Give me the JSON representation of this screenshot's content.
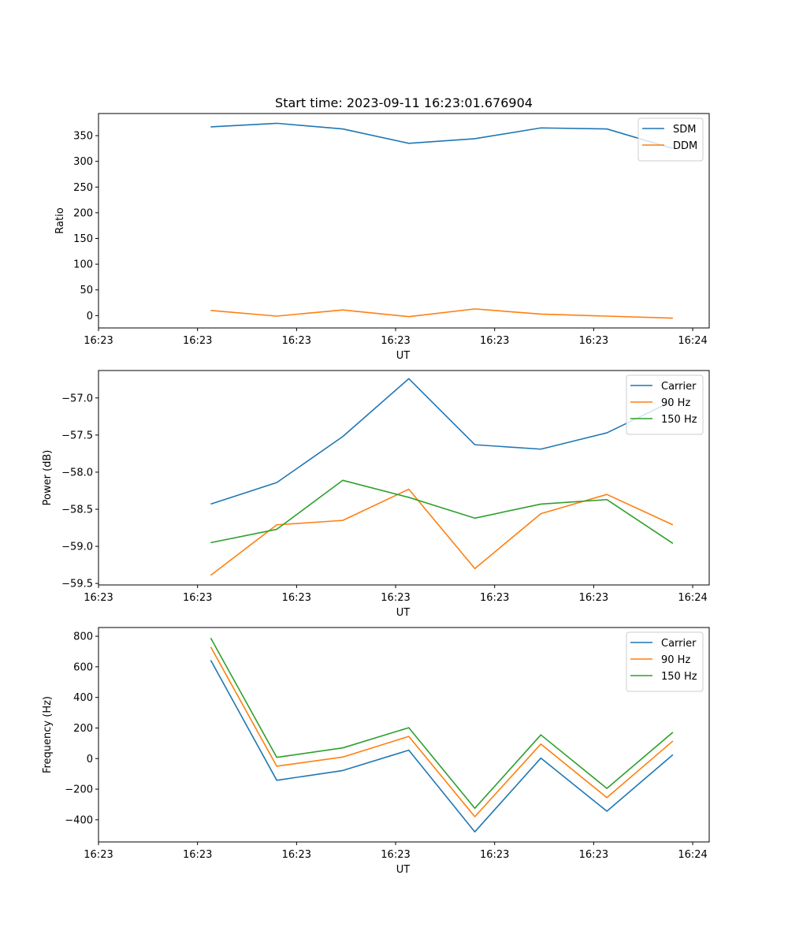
{
  "chart_data": [
    {
      "type": "line",
      "title": "Start time: 2023-09-11 16:23:01.676904",
      "xlabel": "UT",
      "ylabel": "Ratio",
      "xticklabels": [
        "16:23",
        "16:23",
        "16:23",
        "16:23",
        "16:23",
        "16:23",
        "16:24"
      ],
      "x": [
        1,
        2,
        3,
        4,
        5,
        6,
        7,
        8
      ],
      "xlim": [
        -0.7,
        8.55
      ],
      "ylim": [
        -24,
        393
      ],
      "yticks": [
        0,
        50,
        100,
        150,
        200,
        250,
        300,
        350
      ],
      "yticklabels": [
        "0",
        "50",
        "100",
        "150",
        "200",
        "250",
        "300",
        "350"
      ],
      "legend_position": "top-right",
      "series": [
        {
          "name": "SDM",
          "color": "#1f77b4",
          "values": [
            367,
            374,
            363,
            335,
            344,
            365,
            363,
            325
          ]
        },
        {
          "name": "DDM",
          "color": "#ff7f0e",
          "values": [
            10,
            -1,
            11,
            -2,
            13,
            3,
            -1,
            -5
          ]
        }
      ]
    },
    {
      "type": "line",
      "title": "",
      "xlabel": "UT",
      "ylabel": "Power (dB)",
      "xticklabels": [
        "16:23",
        "16:23",
        "16:23",
        "16:23",
        "16:23",
        "16:23",
        "16:24"
      ],
      "x": [
        1,
        2,
        3,
        4,
        5,
        6,
        7,
        8
      ],
      "xlim": [
        -0.7,
        8.55
      ],
      "ylim": [
        -59.52,
        -56.63
      ],
      "yticks": [
        -59.5,
        -59.0,
        -58.5,
        -58.0,
        -57.5,
        -57.0
      ],
      "yticklabels": [
        "−59.5",
        "−59.0",
        "−58.5",
        "−58.0",
        "−57.5",
        "−57.0"
      ],
      "legend_position": "top-right",
      "series": [
        {
          "name": "Carrier",
          "color": "#1f77b4",
          "values": [
            -58.43,
            -58.14,
            -57.52,
            -56.74,
            -57.63,
            -57.69,
            -57.47,
            -57.04
          ]
        },
        {
          "name": "90 Hz",
          "color": "#ff7f0e",
          "values": [
            -59.39,
            -58.71,
            -58.65,
            -58.23,
            -59.3,
            -58.56,
            -58.3,
            -58.71
          ]
        },
        {
          "name": "150 Hz",
          "color": "#2ca02c",
          "values": [
            -58.95,
            -58.77,
            -58.11,
            -58.34,
            -58.62,
            -58.43,
            -58.37,
            -58.96
          ]
        }
      ]
    },
    {
      "type": "line",
      "title": "",
      "xlabel": "UT",
      "ylabel": "Frequency (Hz)",
      "xticklabels": [
        "16:23",
        "16:23",
        "16:23",
        "16:23",
        "16:23",
        "16:23",
        "16:24"
      ],
      "x": [
        1,
        2,
        3,
        4,
        5,
        6,
        7,
        8
      ],
      "xlim": [
        -0.7,
        8.55
      ],
      "ylim": [
        -545,
        857
      ],
      "yticks": [
        -400,
        -200,
        0,
        200,
        400,
        600,
        800
      ],
      "yticklabels": [
        "−400",
        "−200",
        "0",
        "200",
        "400",
        "600",
        "800"
      ],
      "legend_position": "top-right",
      "series": [
        {
          "name": "Carrier",
          "color": "#1f77b4",
          "values": [
            643,
            -142,
            -78,
            55,
            -479,
            3,
            -344,
            25
          ]
        },
        {
          "name": "90 Hz",
          "color": "#ff7f0e",
          "values": [
            730,
            -50,
            10,
            145,
            -380,
            95,
            -255,
            115
          ]
        },
        {
          "name": "150 Hz",
          "color": "#2ca02c",
          "values": [
            788,
            8,
            70,
            202,
            -325,
            155,
            -195,
            172
          ]
        }
      ]
    }
  ]
}
